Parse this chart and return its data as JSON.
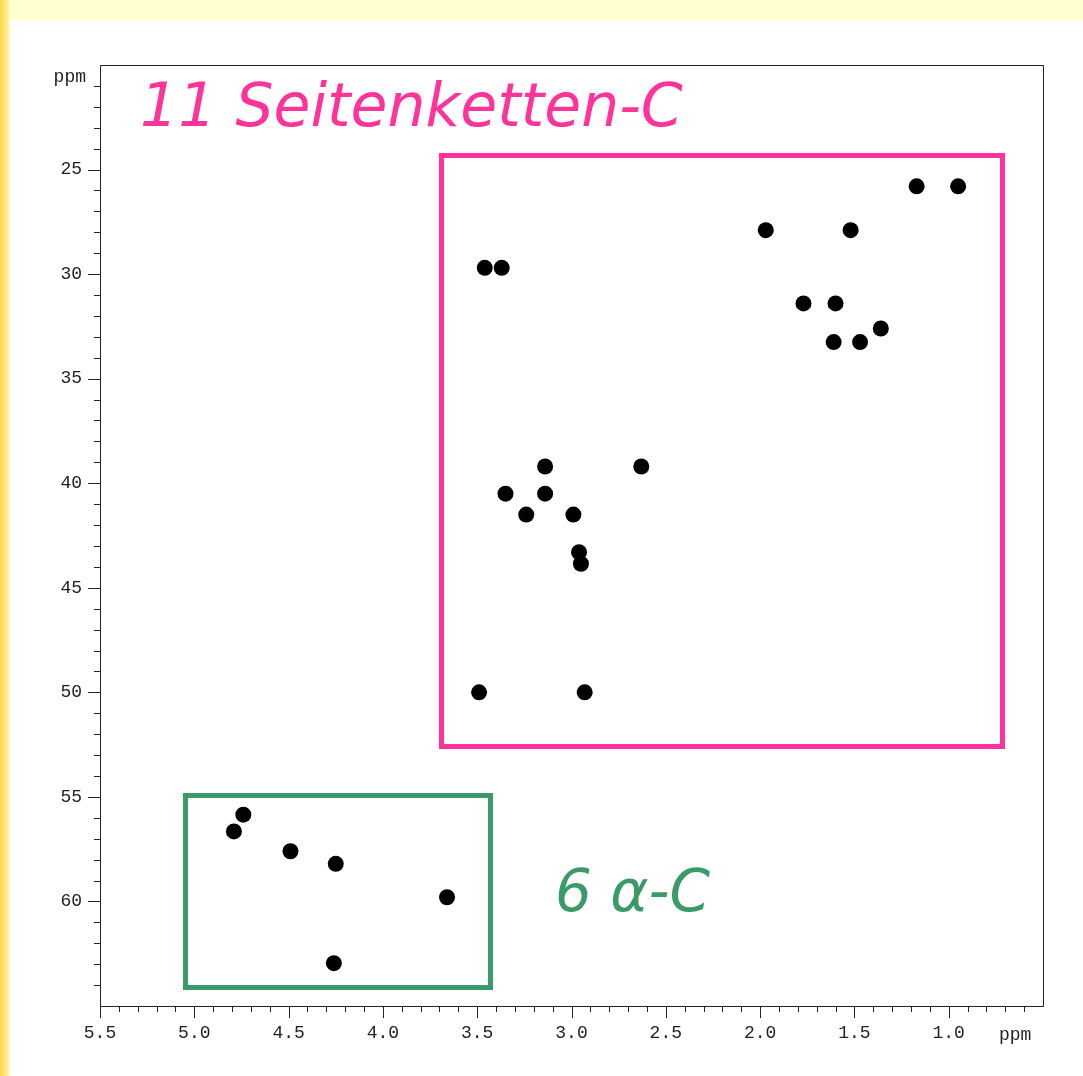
{
  "chart_data": {
    "type": "scatter",
    "xlabel": "ppm",
    "ylabel": "ppm",
    "annotations": [
      "11 Seitenketten-C",
      "6 α-C"
    ],
    "series": [
      {
        "color": "#000000",
        "x": [
          1.17,
          0.95,
          1.97,
          1.52,
          3.46,
          3.37,
          1.77,
          1.6,
          1.61,
          1.47,
          1.36,
          3.14,
          2.63,
          3.35,
          3.14,
          3.24,
          2.99,
          2.96,
          2.95,
          3.49,
          2.93,
          4.74,
          4.79,
          4.49,
          4.25,
          3.66,
          4.26
        ],
        "values": [
          25.8,
          25.8,
          27.9,
          27.9,
          29.7,
          29.7,
          31.4,
          31.4,
          33.25,
          33.25,
          32.6,
          39.2,
          39.2,
          40.5,
          40.5,
          41.5,
          41.5,
          43.3,
          43.85,
          50.0,
          50.0,
          55.85,
          56.65,
          57.6,
          58.2,
          59.8,
          62.95
        ]
      }
    ],
    "xlim": [
      5.5,
      0.5
    ],
    "ylim": [
      65,
      20
    ],
    "xticks": [
      5.5,
      {
        "value": 5.4,
        "label": null
      },
      {
        "value": 5.3,
        "label": null
      },
      {
        "value": 5.2,
        "label": null
      },
      {
        "value": 5.1,
        "label": null
      },
      {
        "value": 5.0,
        "label": "5.0"
      },
      {
        "value": 4.9,
        "label": null
      },
      {
        "value": 4.8,
        "label": null
      },
      {
        "value": 4.7,
        "label": null
      },
      {
        "value": 4.6,
        "label": null
      },
      4.5,
      {
        "value": 4.4,
        "label": null
      },
      {
        "value": 4.3,
        "label": null
      },
      {
        "value": 4.2,
        "label": null
      },
      {
        "value": 4.1,
        "label": null
      },
      {
        "value": 4.0,
        "label": "4.0"
      },
      {
        "value": 3.9,
        "label": null
      },
      {
        "value": 3.8,
        "label": null
      },
      {
        "value": 3.7,
        "label": null
      },
      {
        "value": 3.6,
        "label": null
      },
      3.5,
      {
        "value": 3.4,
        "label": null
      },
      {
        "value": 3.3,
        "label": null
      },
      {
        "value": 3.2,
        "label": null
      },
      {
        "value": 3.1,
        "label": null
      },
      {
        "value": 3.0,
        "label": "3.0"
      },
      {
        "value": 2.9,
        "label": null
      },
      {
        "value": 2.8,
        "label": null
      },
      {
        "value": 2.7,
        "label": null
      },
      {
        "value": 2.6,
        "label": null
      },
      2.5,
      {
        "value": 2.4,
        "label": null
      },
      {
        "value": 2.3,
        "label": null
      },
      {
        "value": 2.2,
        "label": null
      },
      {
        "value": 2.1,
        "label": null
      },
      {
        "value": 2.0,
        "label": "2.0"
      },
      {
        "value": 1.9,
        "label": null
      },
      {
        "value": 1.8,
        "label": null
      },
      {
        "value": 1.7,
        "label": null
      },
      {
        "value": 1.6,
        "label": null
      },
      1.5,
      {
        "value": 1.4,
        "label": null
      },
      {
        "value": 1.3,
        "label": null
      },
      {
        "value": 1.2,
        "label": null
      },
      {
        "value": 1.1,
        "label": null
      },
      {
        "value": 1.0,
        "label": "1.0"
      },
      {
        "value": 0.9,
        "label": null
      },
      {
        "value": 0.8,
        "label": null
      },
      {
        "value": 0.7,
        "label": null
      },
      {
        "value": 0.6,
        "label": null
      }
    ],
    "yticks": [
      {
        "value": 21,
        "label": null
      },
      {
        "value": 22,
        "label": null
      },
      {
        "value": 23,
        "label": null
      },
      {
        "value": 24,
        "label": null
      },
      25,
      {
        "value": 26,
        "label": null
      },
      {
        "value": 27,
        "label": null
      },
      {
        "value": 28,
        "label": null
      },
      {
        "value": 29,
        "label": null
      },
      30,
      {
        "value": 31,
        "label": null
      },
      {
        "value": 32,
        "label": null
      },
      {
        "value": 33,
        "label": null
      },
      {
        "value": 34,
        "label": null
      },
      35,
      {
        "value": 36,
        "label": null
      },
      {
        "value": 37,
        "label": null
      },
      {
        "value": 38,
        "label": null
      },
      {
        "value": 39,
        "label": null
      },
      40,
      {
        "value": 41,
        "label": null
      },
      {
        "value": 42,
        "label": null
      },
      {
        "value": 43,
        "label": null
      },
      {
        "value": 44,
        "label": null
      },
      45,
      {
        "value": 46,
        "label": null
      },
      {
        "value": 47,
        "label": null
      },
      {
        "value": 48,
        "label": null
      },
      {
        "value": 49,
        "label": null
      },
      50,
      {
        "value": 51,
        "label": null
      },
      {
        "value": 52,
        "label": null
      },
      {
        "value": 53,
        "label": null
      },
      {
        "value": 54,
        "label": null
      },
      55,
      {
        "value": 56,
        "label": null
      },
      {
        "value": 57,
        "label": null
      },
      {
        "value": 58,
        "label": null
      },
      {
        "value": 59,
        "label": null
      },
      60,
      {
        "value": 61,
        "label": null
      },
      {
        "value": 62,
        "label": null
      },
      {
        "value": 63,
        "label": null
      },
      {
        "value": 64,
        "label": null
      }
    ],
    "grid": false,
    "legend": false,
    "marker": "circle"
  }
}
